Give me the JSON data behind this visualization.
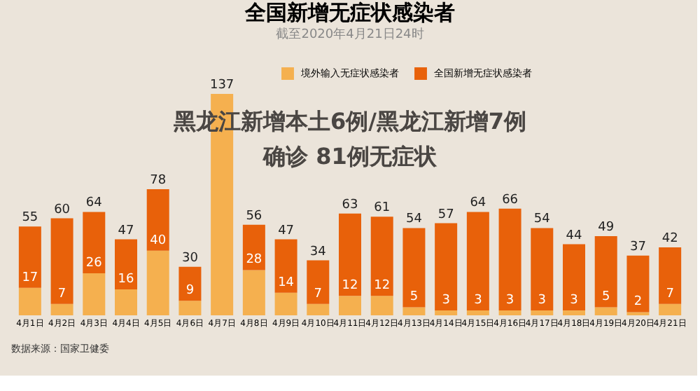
{
  "chart_data": {
    "type": "bar",
    "title": "全国新增无症状感染者",
    "subtitle": "截至2020年4月21日24时",
    "categories": [
      "4月1日",
      "4月2日",
      "4月3日",
      "4月4日",
      "4月5日",
      "4月6日",
      "4月7日",
      "4月8日",
      "4月9日",
      "4月10日",
      "4月11日",
      "4月12日",
      "4月13日",
      "4月14日",
      "4月15日",
      "4月16日",
      "4月17日",
      "4月18日",
      "4月19日",
      "4月20日",
      "4月21日"
    ],
    "stacked": true,
    "series": [
      {
        "name": "境外输入无症状感染者",
        "color": "#f5b04f",
        "values": [
          17,
          7,
          26,
          16,
          40,
          9,
          137,
          28,
          14,
          7,
          12,
          12,
          5,
          3,
          3,
          3,
          3,
          3,
          5,
          2,
          7
        ],
        "value_labels": [
          "17",
          "7",
          "26",
          "16",
          "40",
          "9",
          null,
          "28",
          "14",
          "7",
          "12",
          "12",
          "5",
          "3",
          "3",
          "3",
          "3",
          "3",
          "5",
          "2",
          "7"
        ]
      },
      {
        "name": "全国新增无症状感染者",
        "color": "#e8610a",
        "values": [
          38,
          53,
          38,
          31,
          38,
          21,
          0,
          28,
          33,
          27,
          51,
          49,
          49,
          54,
          61,
          63,
          51,
          41,
          44,
          35,
          35
        ]
      }
    ],
    "totals": [
      "55",
      "60",
      "64",
      "47",
      "78",
      "30",
      "137",
      "56",
      "47",
      "34",
      "63",
      "61",
      "54",
      "57",
      "64",
      "66",
      "54",
      "44",
      "49",
      "37",
      "42"
    ],
    "legend": "top",
    "grid": false,
    "annotations": [
      "黑龙江新增本土6例/黑龙江新增7例",
      "确诊 81例无症状",
      "数据来源：国家卫健委"
    ]
  }
}
